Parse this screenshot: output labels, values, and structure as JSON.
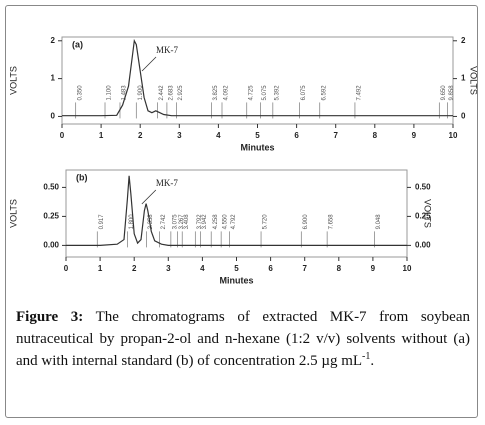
{
  "chart_data": [
    {
      "type": "line",
      "panel": "(a)",
      "annotation": "MK-7",
      "annotation_x": 2.2,
      "ylabel": "VOLTS",
      "y2label": "VOLTS",
      "xlabel": "Minutes",
      "color": "#333",
      "x": [
        0,
        0.5,
        1.0,
        1.4,
        1.55,
        1.7,
        1.8,
        1.85,
        1.9,
        2.0,
        2.1,
        2.2,
        2.3,
        2.4,
        2.5,
        2.6,
        2.8,
        3.0,
        4,
        5,
        6,
        7,
        8,
        9,
        10
      ],
      "values": [
        0.02,
        0.02,
        0.02,
        0.03,
        0.3,
        0.8,
        1.6,
        2.0,
        1.9,
        1.2,
        0.5,
        0.15,
        0.1,
        0.15,
        0.1,
        0.05,
        0.02,
        0.02,
        0.02,
        0.02,
        0.02,
        0.02,
        0.02,
        0.02,
        0.02
      ],
      "xlim": [
        0,
        10
      ],
      "xticks": [
        0,
        1,
        2,
        3,
        4,
        5,
        6,
        7,
        8,
        9,
        10
      ],
      "ylim": [
        -0.2,
        2.1
      ],
      "yticks": [
        0,
        1,
        2
      ],
      "y2lim": [
        -0.2,
        2.1
      ],
      "y2ticks": [
        0,
        1,
        2
      ],
      "peaks": [
        {
          "value": 0.35,
          "label": "0.350"
        },
        {
          "value": 1.1,
          "label": "1.100"
        },
        {
          "value": 1.483,
          "label": "1.483"
        },
        {
          "value": 1.9,
          "label": "1.900"
        },
        {
          "value": 2.442,
          "label": "2.442"
        },
        {
          "value": 2.683,
          "label": "2.683"
        },
        {
          "value": 2.925,
          "label": "2.925"
        },
        {
          "value": 3.825,
          "label": "3.825"
        },
        {
          "value": 4.092,
          "label": "4.092"
        },
        {
          "value": 4.725,
          "label": "4.725"
        },
        {
          "value": 5.075,
          "label": "5.075"
        },
        {
          "value": 5.392,
          "label": "5.392"
        },
        {
          "value": 6.075,
          "label": "6.075"
        },
        {
          "value": 6.592,
          "label": "6.592"
        },
        {
          "value": 7.492,
          "label": "7.492"
        },
        {
          "value": 9.65,
          "label": "9.650"
        },
        {
          "value": 9.858,
          "label": "9.858"
        }
      ]
    },
    {
      "type": "line",
      "panel": "(b)",
      "annotation": "MK-7",
      "annotation_x": 2.4,
      "ylabel": "VOLTS",
      "y2label": "VOLTS",
      "xlabel": "Minutes",
      "color": "#333",
      "x": [
        0,
        0.5,
        1.0,
        1.5,
        1.7,
        1.8,
        1.85,
        1.9,
        2.0,
        2.1,
        2.2,
        2.3,
        2.35,
        2.4,
        2.5,
        2.6,
        2.8,
        3.0,
        4,
        5,
        6,
        7,
        8,
        9,
        10
      ],
      "values": [
        0.0,
        0.0,
        0.0,
        0.01,
        0.05,
        0.4,
        0.6,
        0.45,
        0.1,
        0.02,
        0.05,
        0.3,
        0.36,
        0.3,
        0.12,
        0.04,
        0.01,
        0.0,
        0.0,
        0.0,
        0.0,
        0.0,
        0.0,
        0.0,
        0.0
      ],
      "xlim": [
        0,
        10
      ],
      "xticks": [
        0,
        1,
        2,
        3,
        4,
        5,
        6,
        7,
        8,
        9,
        10
      ],
      "ylim": [
        -0.1,
        0.65
      ],
      "yticks": [
        {
          "value": 0,
          "label": "0.00"
        },
        0.25,
        {
          "value": 0.5,
          "label": "0.50"
        }
      ],
      "y2lim": [
        -0.1,
        0.65
      ],
      "y2ticks": [
        {
          "value": 0,
          "label": "0.00"
        },
        0.25,
        {
          "value": 0.5,
          "label": "0.50"
        }
      ],
      "peaks": [
        {
          "value": 0.917,
          "label": "0.917"
        },
        {
          "value": 1.8,
          "label": "1.800"
        },
        {
          "value": 2.358,
          "label": "2.358"
        },
        {
          "value": 2.742,
          "label": "2.742"
        },
        {
          "value": 3.075,
          "label": "3.075"
        },
        {
          "value": 3.267,
          "label": "3.267"
        },
        {
          "value": 3.408,
          "label": "3.408"
        },
        {
          "value": 3.792,
          "label": "3.792"
        },
        {
          "value": 3.942,
          "label": "3.942"
        },
        {
          "value": 4.258,
          "label": "4.258"
        },
        {
          "value": 4.55,
          "label": "4.550"
        },
        {
          "value": 4.792,
          "label": "4.792"
        },
        {
          "value": 5.72,
          "label": "5.720"
        },
        {
          "value": 6.9,
          "label": "6.900"
        },
        {
          "value": 7.658,
          "label": "7.658"
        },
        {
          "value": 9.048,
          "label": "9.048"
        }
      ]
    }
  ],
  "caption": {
    "label": "Figure 3:",
    "text": " The chromatograms of extracted MK-7 from soybean nutraceutical by propan-2-ol and n-hexane (1:2 v/v) solvents without (a) and with internal standard (b) of concentration 2.5 µg mL",
    "superscript": "-1",
    "end": "."
  }
}
